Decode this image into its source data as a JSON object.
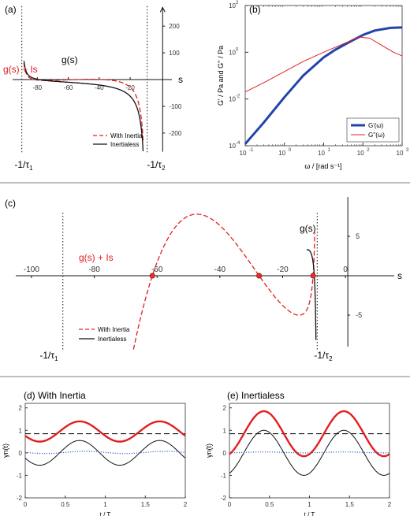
{
  "colors": {
    "red": "#e02020",
    "black": "#111111",
    "blue": "#2244aa",
    "blue_dot": "#3a5fcd",
    "marker": "#e03030"
  },
  "chart_data": [
    {
      "panel": "(a)",
      "type": "line",
      "xticks": [
        "-80",
        "-60",
        "-40",
        "-20"
      ],
      "yticks": [
        "200",
        "100",
        "-100",
        "-200"
      ],
      "xlabel": "s",
      "xlim": [
        -98,
        8
      ],
      "ylim": [
        -280,
        280
      ],
      "asymptotes": [
        -90,
        -9
      ],
      "asymptote_labels": [
        "-1/τ1",
        "-1/τ2"
      ],
      "annotations": [
        "g(s)",
        "g(s) + Is"
      ],
      "legend": [
        "With Inertia",
        "Inertialess"
      ],
      "legend_position": "bottom-right",
      "series": [
        {
          "name": "With Inertia",
          "style": "dashed",
          "color": "red"
        },
        {
          "name": "Inertialess",
          "style": "solid",
          "color": "black"
        }
      ]
    },
    {
      "panel": "(b)",
      "type": "line",
      "xlabel": "ω / [rad s⁻¹]",
      "ylabel": "G' / Pa and G'' / Pa",
      "xscale": "log",
      "yscale": "log",
      "xlim": [
        0.1,
        1000
      ],
      "ylim": [
        0.0001,
        100
      ],
      "xticks": [
        "10",
        "10",
        "10",
        "10",
        "10"
      ],
      "xtick_exponents": [
        "-1",
        "0",
        "1",
        "2",
        "3"
      ],
      "yticks": [
        "10",
        "10",
        "10",
        "10"
      ],
      "ytick_exponents": [
        "-4",
        "-2",
        "0",
        "2"
      ],
      "legend": [
        "G'(ω)",
        "G''(ω)"
      ],
      "legend_position": "bottom-right",
      "series": [
        {
          "name": "G'(ω)",
          "color": "blue",
          "x": [
            0.1,
            0.3,
            1,
            3,
            10,
            20,
            50,
            100,
            200,
            500,
            1000
          ],
          "y": [
            0.00012,
            0.001,
            0.012,
            0.1,
            0.6,
            1.3,
            3.0,
            5.5,
            8.5,
            11,
            11.5
          ]
        },
        {
          "name": "G''(ω)",
          "color": "red",
          "x": [
            0.1,
            0.3,
            1,
            3,
            10,
            30,
            80,
            150,
            300,
            600,
            1000
          ],
          "y": [
            0.02,
            0.05,
            0.15,
            0.4,
            1.0,
            2.2,
            4.5,
            4.0,
            2.0,
            1.0,
            0.7
          ]
        }
      ]
    },
    {
      "panel": "(c)",
      "type": "line",
      "xticks": [
        "-100",
        "-80",
        "-60",
        "-40",
        "-20",
        "0"
      ],
      "yticks": [
        "5",
        "-5"
      ],
      "xlabel": "s",
      "xlim": [
        -105,
        8
      ],
      "ylim": [
        -9.5,
        10.5
      ],
      "asymptotes": [
        -90,
        -9
      ],
      "asymptote_labels": [
        "-1/τ1",
        "-1/τ2"
      ],
      "annotations": [
        "g(s) + Is",
        "g(s)"
      ],
      "roots": [
        -61.5,
        -27.5,
        -10.3
      ],
      "legend": [
        "With Inertia",
        "Inertialess"
      ],
      "legend_position": "bottom-left",
      "series": [
        {
          "name": "With Inertia",
          "style": "dashed",
          "color": "red"
        },
        {
          "name": "Inertialess",
          "style": "solid",
          "color": "black"
        }
      ]
    },
    {
      "panel": "(d)",
      "title": "(d) With Inertia",
      "type": "line",
      "xlabel": "t / T",
      "ylabel": "γn(t)",
      "xlim": [
        0,
        2
      ],
      "ylim": [
        -2,
        2.2
      ],
      "xticks": [
        "0",
        "0.5",
        "1",
        "1.5",
        "2"
      ],
      "yticks": [
        "2",
        "1",
        "0",
        "-1",
        "-2"
      ],
      "reference_level": 0.85,
      "series": [
        {
          "color": "red",
          "offset": 0.95,
          "amplitude": 0.45,
          "peak_t": 0.68
        },
        {
          "color": "black",
          "offset": 0.0,
          "amplitude": 0.55,
          "peak_t": 0.68
        },
        {
          "color": "blue_dot",
          "style": "dotted",
          "offset": 0.02,
          "amplitude": 0.05,
          "peak_t": 0.75
        }
      ]
    },
    {
      "panel": "(e)",
      "title": "(e) Inertialess",
      "type": "line",
      "xlabel": "t / T",
      "ylabel": "γn(t)",
      "xlim": [
        0,
        2
      ],
      "ylim": [
        -2,
        2.2
      ],
      "xticks": [
        "0",
        "0.5",
        "1",
        "1.5",
        "2"
      ],
      "yticks": [
        "2",
        "1",
        "0",
        "-1",
        "-2"
      ],
      "reference_level": 0.85,
      "series": [
        {
          "color": "red",
          "offset": 0.85,
          "amplitude": 1.0,
          "peak_t": 0.43
        },
        {
          "color": "black",
          "offset": 0.0,
          "amplitude": 1.0,
          "peak_t": 0.43
        },
        {
          "color": "blue_dot",
          "style": "dotted",
          "offset": 0.02,
          "amplitude": 0.02,
          "peak_t": 0.43
        }
      ]
    }
  ]
}
